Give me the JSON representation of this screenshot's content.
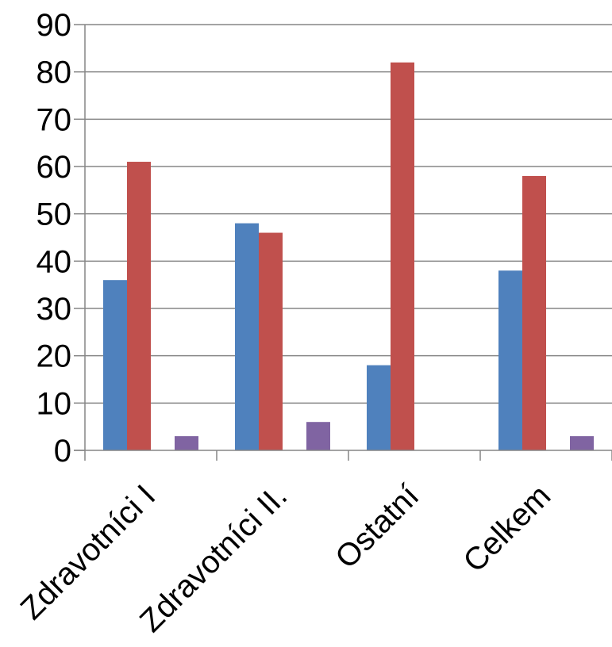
{
  "chart_data": {
    "type": "bar",
    "categories": [
      "Zdravotníci I",
      "Zdravotníci II.",
      "Ostatní",
      "Celkem"
    ],
    "series": [
      {
        "color": "#4F81BD",
        "values": [
          36,
          48,
          18,
          38
        ]
      },
      {
        "color": "#C0504D",
        "values": [
          61,
          46,
          82,
          58
        ]
      },
      {
        "color": "#9BBB59",
        "values": [
          0,
          0,
          0,
          0
        ]
      },
      {
        "color": "#8064A2",
        "values": [
          3,
          6,
          0,
          3
        ]
      }
    ],
    "yticks": [
      "0",
      "10",
      "20",
      "30",
      "40",
      "50",
      "60",
      "70",
      "80",
      "90"
    ],
    "ylim": [
      0,
      90
    ],
    "grid": true,
    "legend": "none"
  }
}
